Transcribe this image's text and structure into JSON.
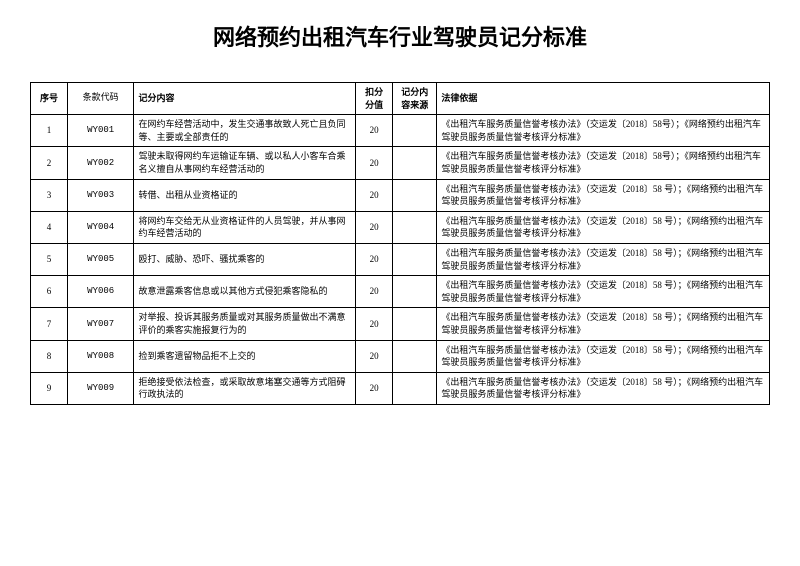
{
  "document": {
    "title": "网络预约出租汽车行业驾驶员记分标准",
    "headers": {
      "seq": "序号",
      "code": "条款代码",
      "desc": "记分内容",
      "score": "扣分\n分值",
      "source": "记分内\n容来源",
      "law": "法律依据"
    },
    "rows": [
      {
        "seq": "1",
        "code": "WY001",
        "desc": "在网约车经营活动中，发生交通事故致人死亡且负同等、主要或全部责任的",
        "score": "20",
        "source": "",
        "law": "《出租汽车服务质量信誉考核办法》（交运发〔2018〕58号）；《网络预约出租汽车驾驶员服务质量信誉考核评分标准》"
      },
      {
        "seq": "2",
        "code": "WY002",
        "desc": "驾驶未取得网约车运输证车辆、或以私人小客车合乘名义擅自从事网约车经营活动的",
        "score": "20",
        "source": "",
        "law": "《出租汽车服务质量信誉考核办法》（交运发〔2018〕58号）；《网络预约出租汽车驾驶员服务质量信誉考核评分标准》"
      },
      {
        "seq": "3",
        "code": "WY003",
        "desc": "转借、出租从业资格证的",
        "score": "20",
        "source": "",
        "law": "《出租汽车服务质量信誉考核办法》（交运发〔2018〕58 号）；《网络预约出租汽车驾驶员服务质量信誉考核评分标准》"
      },
      {
        "seq": "4",
        "code": "WY004",
        "desc": "将网约车交给无从业资格证件的人员驾驶，并从事网约车经营活动的",
        "score": "20",
        "source": "",
        "law": "《出租汽车服务质量信誉考核办法》（交运发〔2018〕58 号）；《网络预约出租汽车驾驶员服务质量信誉考核评分标准》"
      },
      {
        "seq": "5",
        "code": "WY005",
        "desc": "殴打、威胁、恐吓、骚扰乘客的",
        "score": "20",
        "source": "",
        "law": "《出租汽车服务质量信誉考核办法》（交运发〔2018〕58 号）；《网络预约出租汽车驾驶员服务质量信誉考核评分标准》"
      },
      {
        "seq": "6",
        "code": "WY006",
        "desc": "故意泄露乘客信息或以其他方式侵犯乘客隐私的",
        "score": "20",
        "source": "",
        "law": "《出租汽车服务质量信誉考核办法》（交运发〔2018〕58 号）；《网络预约出租汽车驾驶员服务质量信誉考核评分标准》"
      },
      {
        "seq": "7",
        "code": "WY007",
        "desc": "对举报、投诉其服务质量或对其服务质量做出不满意评价的乘客实施报复行为的",
        "score": "20",
        "source": "",
        "law": "《出租汽车服务质量信誉考核办法》（交运发〔2018〕58 号）；《网络预约出租汽车驾驶员服务质量信誉考核评分标准》"
      },
      {
        "seq": "8",
        "code": "WY008",
        "desc": "捡到乘客遗留物品拒不上交的",
        "score": "20",
        "source": "",
        "law": "《出租汽车服务质量信誉考核办法》（交运发〔2018〕58 号）；《网络预约出租汽车驾驶员服务质量信誉考核评分标准》"
      },
      {
        "seq": "9",
        "code": "WY009",
        "desc": "拒绝接受依法检查，或采取故意堵塞交通等方式阻碍行政执法的",
        "score": "20",
        "source": "",
        "law": "《出租汽车服务质量信誉考核办法》（交运发〔2018〕58 号）；《网络预约出租汽车驾驶员服务质量信誉考核评分标准》"
      }
    ]
  }
}
